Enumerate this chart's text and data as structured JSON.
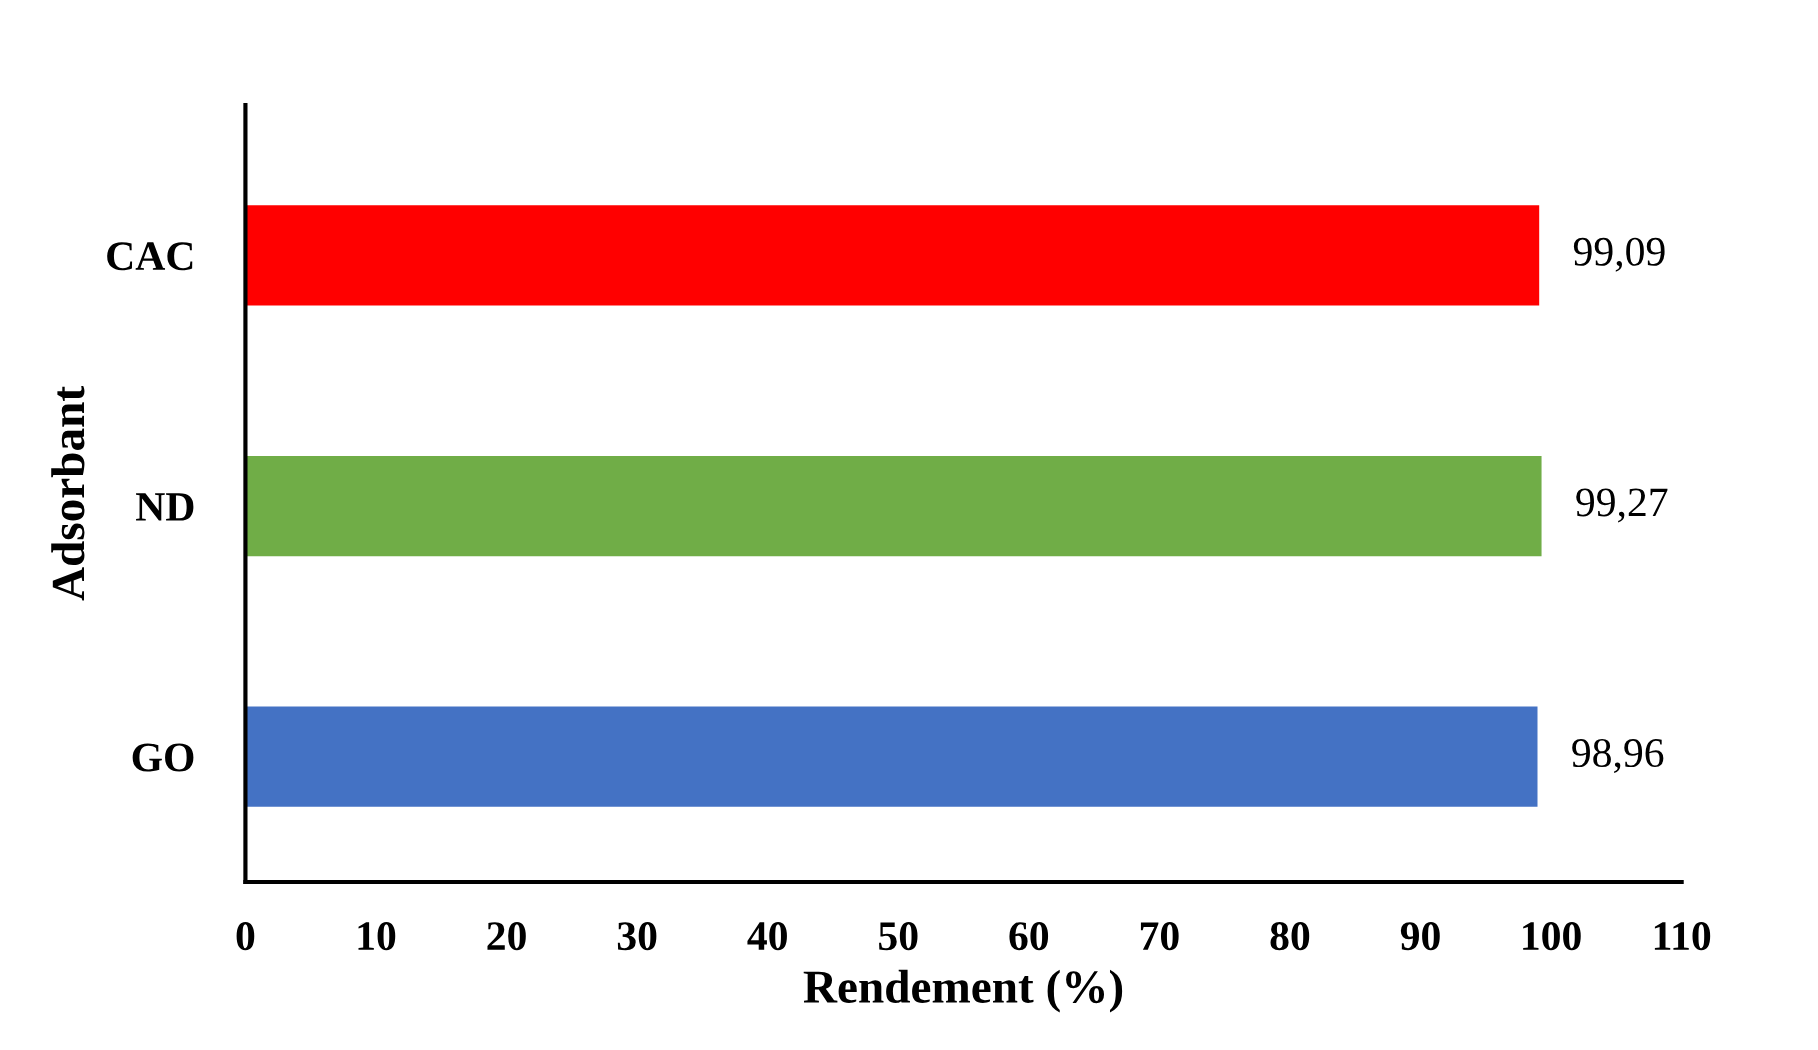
{
  "chart_data": {
    "type": "bar",
    "orientation": "horizontal",
    "xlabel": "Rendement (%)",
    "ylabel": "Adsorbant",
    "categories": [
      "CAC",
      "ND",
      "GO"
    ],
    "values": [
      99.09,
      99.27,
      98.96
    ],
    "colors": [
      "#ff0000",
      "#70ad47",
      "#4472c4"
    ],
    "value_labels": [
      "99,09",
      "99,27",
      "98,96"
    ],
    "xlim": [
      0,
      110
    ],
    "xticks": [
      0,
      10,
      20,
      30,
      40,
      50,
      60,
      70,
      80,
      90,
      100,
      110
    ],
    "grid": false,
    "legend": false
  }
}
